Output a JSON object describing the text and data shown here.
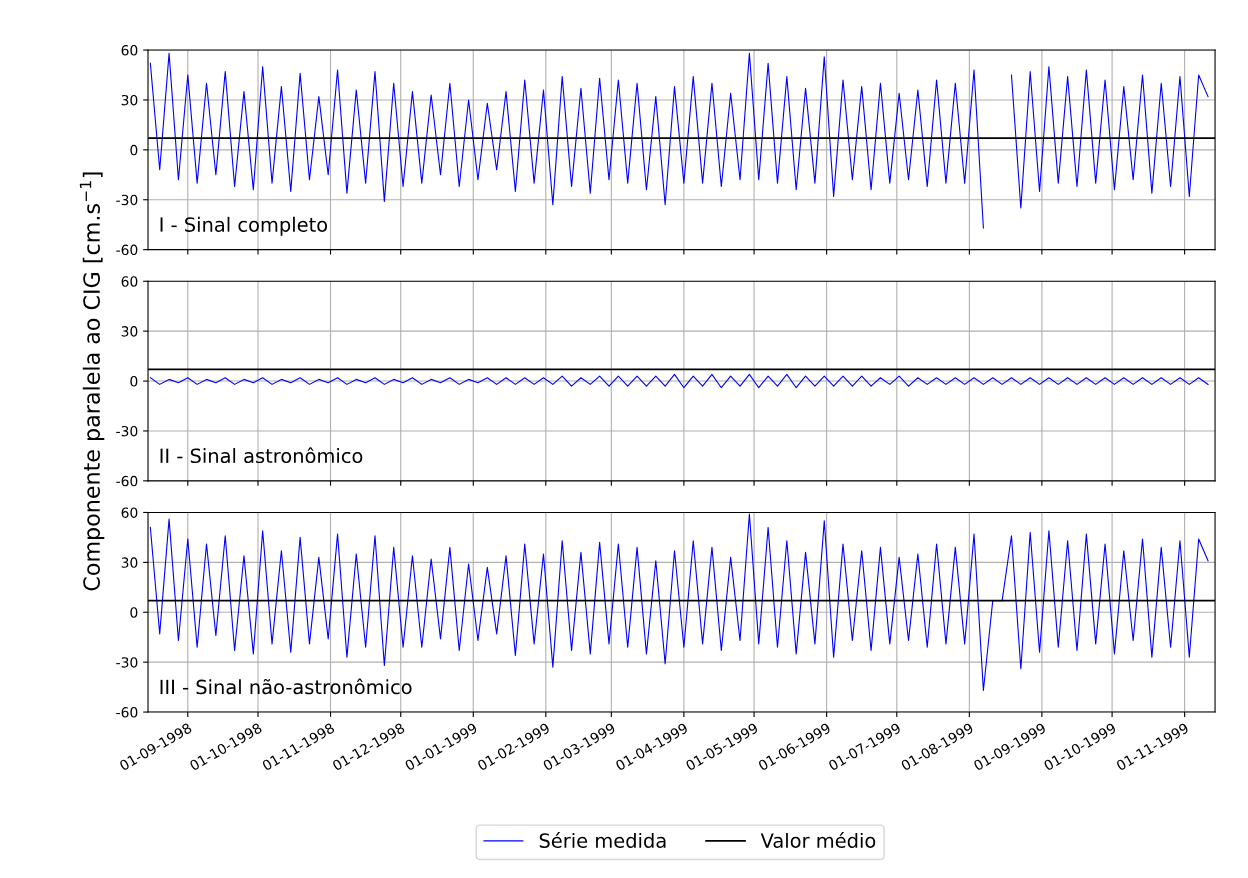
{
  "chart_data": [
    {
      "type": "line",
      "xlim": [
        "1998-08-15",
        "1999-11-14"
      ],
      "ylim": [
        -60,
        60
      ],
      "yticks": [
        -60,
        -30,
        0,
        30,
        60
      ],
      "grid": true,
      "legend": "bottom",
      "tick_labels": "y",
      "annotations": [
        "I - Sinal completo"
      ],
      "x": [
        "1998-08-16",
        "1998-08-20",
        "1998-08-24",
        "1998-08-28",
        "1998-09-01",
        "1998-09-05",
        "1998-09-09",
        "1998-09-13",
        "1998-09-17",
        "1998-09-21",
        "1998-09-25",
        "1998-09-29",
        "1998-10-03",
        "1998-10-07",
        "1998-10-11",
        "1998-10-15",
        "1998-10-19",
        "1998-10-23",
        "1998-10-27",
        "1998-10-31",
        "1998-11-04",
        "1998-11-08",
        "1998-11-12",
        "1998-11-16",
        "1998-11-20",
        "1998-11-24",
        "1998-11-28",
        "1998-12-02",
        "1998-12-06",
        "1998-12-10",
        "1998-12-14",
        "1998-12-18",
        "1998-12-22",
        "1998-12-26",
        "1998-12-30",
        "1999-01-03",
        "1999-01-07",
        "1999-01-11",
        "1999-01-15",
        "1999-01-19",
        "1999-01-23",
        "1999-01-27",
        "1999-01-31",
        "1999-02-04",
        "1999-02-08",
        "1999-02-12",
        "1999-02-16",
        "1999-02-20",
        "1999-02-24",
        "1999-02-28",
        "1999-03-04",
        "1999-03-08",
        "1999-03-12",
        "1999-03-16",
        "1999-03-20",
        "1999-03-24",
        "1999-03-28",
        "1999-04-01",
        "1999-04-05",
        "1999-04-09",
        "1999-04-13",
        "1999-04-17",
        "1999-04-21",
        "1999-04-25",
        "1999-04-29",
        "1999-05-03",
        "1999-05-07",
        "1999-05-11",
        "1999-05-15",
        "1999-05-19",
        "1999-05-23",
        "1999-05-27",
        "1999-05-31",
        "1999-06-04",
        "1999-06-08",
        "1999-06-12",
        "1999-06-16",
        "1999-06-20",
        "1999-06-24",
        "1999-06-28",
        "1999-07-02",
        "1999-07-06",
        "1999-07-10",
        "1999-07-14",
        "1999-07-18",
        "1999-07-22",
        "1999-07-26",
        "1999-07-30",
        "1999-08-03",
        "1999-08-07",
        "1999-08-11",
        "1999-08-15",
        "1999-08-19",
        "1999-08-23",
        "1999-08-27",
        "1999-08-31",
        "1999-09-04",
        "1999-09-08",
        "1999-09-12",
        "1999-09-16",
        "1999-09-20",
        "1999-09-24",
        "1999-09-28",
        "1999-10-02",
        "1999-10-06",
        "1999-10-10",
        "1999-10-14",
        "1999-10-18",
        "1999-10-22",
        "1999-10-26",
        "1999-10-30",
        "1999-11-03",
        "1999-11-07",
        "1999-11-11"
      ],
      "series": [
        {
          "name": "Série medida",
          "color": "#0000ff",
          "values": [
            52,
            -12,
            58,
            -18,
            45,
            -20,
            40,
            -15,
            47,
            -22,
            35,
            -24,
            50,
            -20,
            38,
            -25,
            46,
            -18,
            32,
            -15,
            48,
            -26,
            36,
            -20,
            47,
            -31,
            40,
            -22,
            35,
            -20,
            33,
            -15,
            40,
            -22,
            30,
            -18,
            28,
            -12,
            35,
            -25,
            42,
            -20,
            36,
            -33,
            44,
            -22,
            37,
            -26,
            43,
            -18,
            42,
            -20,
            40,
            -24,
            32,
            -33,
            38,
            -20,
            44,
            -20,
            40,
            -22,
            34,
            -18,
            58,
            -18,
            52,
            -20,
            44,
            -24,
            37,
            -20,
            56,
            -28,
            42,
            -18,
            38,
            -24,
            40,
            -20,
            34,
            -18,
            36,
            -22,
            42,
            -20,
            40,
            -20,
            48,
            -47,
            null,
            null,
            45,
            -35,
            47,
            -25,
            50,
            -20,
            44,
            -22,
            48,
            -20,
            42,
            -24,
            38,
            -18,
            45,
            -26,
            40,
            -22,
            44,
            -28,
            45,
            32
          ]
        },
        {
          "name": "Valor médio",
          "color": "#000000",
          "x": [
            "1998-08-15",
            "1999-11-14"
          ],
          "values": [
            7,
            7
          ]
        }
      ]
    },
    {
      "type": "line",
      "xlim": [
        "1998-08-15",
        "1999-11-14"
      ],
      "ylim": [
        -60,
        60
      ],
      "yticks": [
        -60,
        -30,
        0,
        30,
        60
      ],
      "grid": true,
      "tick_labels": "y",
      "ylabel": "Componente paralela ao CIG [cm.s$^{−1}$]",
      "annotations": [
        "II - Sinal astronômico"
      ],
      "x": [
        "1998-08-16",
        "1998-08-20",
        "1998-08-24",
        "1998-08-28",
        "1998-09-01",
        "1998-09-05",
        "1998-09-09",
        "1998-09-13",
        "1998-09-17",
        "1998-09-21",
        "1998-09-25",
        "1998-09-29",
        "1998-10-03",
        "1998-10-07",
        "1998-10-11",
        "1998-10-15",
        "1998-10-19",
        "1998-10-23",
        "1998-10-27",
        "1998-10-31",
        "1998-11-04",
        "1998-11-08",
        "1998-11-12",
        "1998-11-16",
        "1998-11-20",
        "1998-11-24",
        "1998-11-28",
        "1998-12-02",
        "1998-12-06",
        "1998-12-10",
        "1998-12-14",
        "1998-12-18",
        "1998-12-22",
        "1998-12-26",
        "1998-12-30",
        "1999-01-03",
        "1999-01-07",
        "1999-01-11",
        "1999-01-15",
        "1999-01-19",
        "1999-01-23",
        "1999-01-27",
        "1999-01-31",
        "1999-02-04",
        "1999-02-08",
        "1999-02-12",
        "1999-02-16",
        "1999-02-20",
        "1999-02-24",
        "1999-02-28",
        "1999-03-04",
        "1999-03-08",
        "1999-03-12",
        "1999-03-16",
        "1999-03-20",
        "1999-03-24",
        "1999-03-28",
        "1999-04-01",
        "1999-04-05",
        "1999-04-09",
        "1999-04-13",
        "1999-04-17",
        "1999-04-21",
        "1999-04-25",
        "1999-04-29",
        "1999-05-03",
        "1999-05-07",
        "1999-05-11",
        "1999-05-15",
        "1999-05-19",
        "1999-05-23",
        "1999-05-27",
        "1999-05-31",
        "1999-06-04",
        "1999-06-08",
        "1999-06-12",
        "1999-06-16",
        "1999-06-20",
        "1999-06-24",
        "1999-06-28",
        "1999-07-02",
        "1999-07-06",
        "1999-07-10",
        "1999-07-14",
        "1999-07-18",
        "1999-07-22",
        "1999-07-26",
        "1999-07-30",
        "1999-08-03",
        "1999-08-07",
        "1999-08-11",
        "1999-08-15",
        "1999-08-19",
        "1999-08-23",
        "1999-08-27",
        "1999-08-31",
        "1999-09-04",
        "1999-09-08",
        "1999-09-12",
        "1999-09-16",
        "1999-09-20",
        "1999-09-24",
        "1999-09-28",
        "1999-10-02",
        "1999-10-06",
        "1999-10-10",
        "1999-10-14",
        "1999-10-18",
        "1999-10-22",
        "1999-10-26",
        "1999-10-30",
        "1999-11-03",
        "1999-11-07",
        "1999-11-11"
      ],
      "series": [
        {
          "color": "#0000ff",
          "values": [
            2,
            -2,
            1,
            -1,
            2,
            -2,
            1,
            -1,
            2,
            -2,
            1,
            -1,
            2,
            -2,
            1,
            -1,
            2,
            -2,
            1,
            -1,
            2,
            -2,
            1,
            -1,
            2,
            -2,
            1,
            -1,
            2,
            -2,
            1,
            -1,
            2,
            -2,
            1,
            -1,
            2,
            -2,
            2,
            -2,
            2,
            -2,
            2,
            -2,
            3,
            -3,
            2,
            -2,
            3,
            -3,
            3,
            -3,
            3,
            -3,
            3,
            -3,
            4,
            -4,
            3,
            -3,
            4,
            -4,
            3,
            -3,
            4,
            -4,
            3,
            -3,
            4,
            -4,
            3,
            -3,
            3,
            -3,
            3,
            -3,
            3,
            -3,
            2,
            -2,
            3,
            -3,
            2,
            -2,
            2,
            -2,
            2,
            -2,
            2,
            -2,
            2,
            -2,
            2,
            -2,
            2,
            -2,
            2,
            -2,
            2,
            -2,
            2,
            -2,
            2,
            -2,
            2,
            -2,
            2,
            -2,
            2,
            -2,
            2,
            -2,
            2,
            -2
          ]
        },
        {
          "color": "#000000",
          "x": [
            "1998-08-15",
            "1999-11-14"
          ],
          "values": [
            7,
            7
          ]
        }
      ]
    },
    {
      "type": "line",
      "xlim": [
        "1998-08-15",
        "1999-11-14"
      ],
      "ylim": [
        -60,
        60
      ],
      "yticks": [
        -60,
        -30,
        0,
        30,
        60
      ],
      "grid": true,
      "xticks": [
        {
          "value": "1998-09-01",
          "label": "01-09-1998"
        },
        {
          "value": "1998-10-01",
          "label": "01-10-1998"
        },
        {
          "value": "1998-11-01",
          "label": "01-11-1998"
        },
        {
          "value": "1998-12-01",
          "label": "01-12-1998"
        },
        {
          "value": "1999-01-01",
          "label": "01-01-1999"
        },
        {
          "value": "1999-02-01",
          "label": "01-02-1999"
        },
        {
          "value": "1999-03-01",
          "label": "01-03-1999"
        },
        {
          "value": "1999-04-01",
          "label": "01-04-1999"
        },
        {
          "value": "1999-05-01",
          "label": "01-05-1999"
        },
        {
          "value": "1999-06-01",
          "label": "01-06-1999"
        },
        {
          "value": "1999-07-01",
          "label": "01-07-1999"
        },
        {
          "value": "1999-08-01",
          "label": "01-08-1999"
        },
        {
          "value": "1999-09-01",
          "label": "01-09-1999"
        },
        {
          "value": "1999-10-01",
          "label": "01-10-1999"
        },
        {
          "value": "1999-11-01",
          "label": "01-11-1999"
        }
      ],
      "annotations": [
        "III - Sinal não-astronômico"
      ],
      "x": [
        "1998-08-16",
        "1998-08-20",
        "1998-08-24",
        "1998-08-28",
        "1998-09-01",
        "1998-09-05",
        "1998-09-09",
        "1998-09-13",
        "1998-09-17",
        "1998-09-21",
        "1998-09-25",
        "1998-09-29",
        "1998-10-03",
        "1998-10-07",
        "1998-10-11",
        "1998-10-15",
        "1998-10-19",
        "1998-10-23",
        "1998-10-27",
        "1998-10-31",
        "1998-11-04",
        "1998-11-08",
        "1998-11-12",
        "1998-11-16",
        "1998-11-20",
        "1998-11-24",
        "1998-11-28",
        "1998-12-02",
        "1998-12-06",
        "1998-12-10",
        "1998-12-14",
        "1998-12-18",
        "1998-12-22",
        "1998-12-26",
        "1998-12-30",
        "1999-01-03",
        "1999-01-07",
        "1999-01-11",
        "1999-01-15",
        "1999-01-19",
        "1999-01-23",
        "1999-01-27",
        "1999-01-31",
        "1999-02-04",
        "1999-02-08",
        "1999-02-12",
        "1999-02-16",
        "1999-02-20",
        "1999-02-24",
        "1999-02-28",
        "1999-03-04",
        "1999-03-08",
        "1999-03-12",
        "1999-03-16",
        "1999-03-20",
        "1999-03-24",
        "1999-03-28",
        "1999-04-01",
        "1999-04-05",
        "1999-04-09",
        "1999-04-13",
        "1999-04-17",
        "1999-04-21",
        "1999-04-25",
        "1999-04-29",
        "1999-05-03",
        "1999-05-07",
        "1999-05-11",
        "1999-05-15",
        "1999-05-19",
        "1999-05-23",
        "1999-05-27",
        "1999-05-31",
        "1999-06-04",
        "1999-06-08",
        "1999-06-12",
        "1999-06-16",
        "1999-06-20",
        "1999-06-24",
        "1999-06-28",
        "1999-07-02",
        "1999-07-06",
        "1999-07-10",
        "1999-07-14",
        "1999-07-18",
        "1999-07-22",
        "1999-07-26",
        "1999-07-30",
        "1999-08-03",
        "1999-08-07",
        "1999-08-11",
        "1999-08-15",
        "1999-08-19",
        "1999-08-23",
        "1999-08-27",
        "1999-08-31",
        "1999-09-04",
        "1999-09-08",
        "1999-09-12",
        "1999-09-16",
        "1999-09-20",
        "1999-09-24",
        "1999-09-28",
        "1999-10-02",
        "1999-10-06",
        "1999-10-10",
        "1999-10-14",
        "1999-10-18",
        "1999-10-22",
        "1999-10-26",
        "1999-10-30",
        "1999-11-03",
        "1999-11-07",
        "1999-11-11"
      ],
      "series": [
        {
          "color": "#0000ff",
          "values": [
            51,
            -13,
            56,
            -17,
            44,
            -21,
            41,
            -14,
            46,
            -23,
            34,
            -25,
            49,
            -19,
            37,
            -24,
            45,
            -19,
            33,
            -16,
            47,
            -27,
            35,
            -21,
            46,
            -32,
            39,
            -21,
            34,
            -21,
            32,
            -16,
            39,
            -23,
            29,
            -17,
            27,
            -13,
            34,
            -26,
            41,
            -19,
            35,
            -33,
            43,
            -23,
            36,
            -25,
            42,
            -19,
            41,
            -21,
            39,
            -25,
            31,
            -31,
            37,
            -21,
            43,
            -19,
            39,
            -23,
            33,
            -17,
            59,
            -19,
            51,
            -21,
            43,
            -25,
            36,
            -19,
            55,
            -27,
            41,
            -17,
            37,
            -23,
            39,
            -19,
            33,
            -17,
            35,
            -21,
            41,
            -19,
            39,
            -19,
            47,
            -47,
            7,
            7,
            46,
            -34,
            48,
            -24,
            49,
            -21,
            43,
            -23,
            47,
            -19,
            41,
            -25,
            37,
            -17,
            44,
            -27,
            39,
            -21,
            43,
            -27,
            44,
            31
          ]
        },
        {
          "color": "#000000",
          "x": [
            "1998-08-15",
            "1999-11-14"
          ],
          "values": [
            7,
            7
          ]
        }
      ]
    }
  ]
}
